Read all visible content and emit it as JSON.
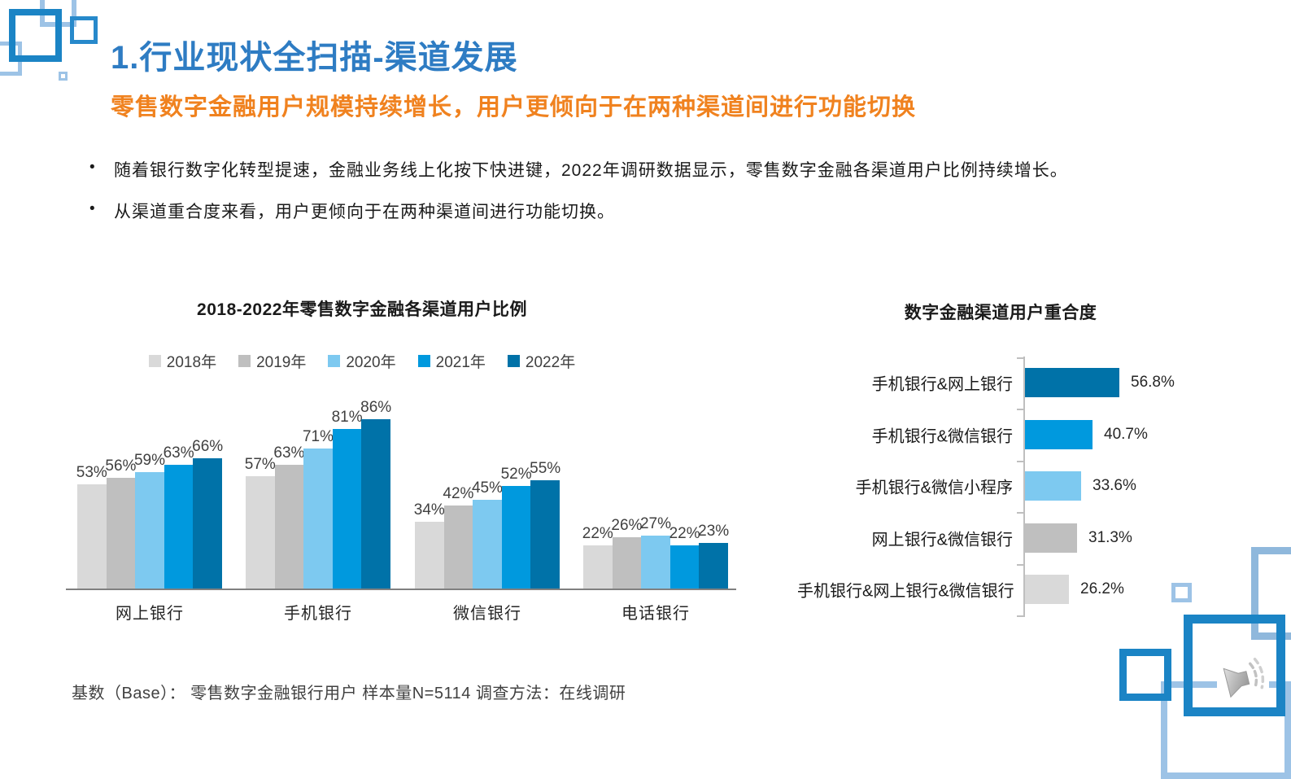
{
  "slide": {
    "title": "1.行业现状全扫描-渠道发展",
    "subtitle": "零售数字金融用户规模持续增长，用户更倾向于在两种渠道间进行功能切换",
    "bullet_char": "•",
    "bullets": [
      "随着银行数字化转型提速，金融业务线上化按下快进键，2022年调研数据显示，零售数字金融各渠道用户比例持续增长。",
      "从渠道重合度来看，用户更倾向于在两种渠道间进行功能切换。"
    ],
    "footer": "基数（Base）： 零售数字金融银行用户  样本量N=5114  调查方法：在线调研"
  },
  "colors": {
    "title_blue": "#2e7cc3",
    "accent_orange": "#f0821f",
    "decor_dark_blue": "#1b84c5",
    "decor_light_blue": "#9dc3e6",
    "axis_gray_left": "#808080",
    "axis_gray_right": "#bfbfbf"
  },
  "icons": {
    "audio_speaker": "speaker-with-sound-waves"
  },
  "chart_data": [
    {
      "type": "bar",
      "title": "2018-2022年零售数字金融各渠道用户比例",
      "categories": [
        "网上银行",
        "手机银行",
        "微信银行",
        "电话银行"
      ],
      "series": [
        {
          "name": "2018年",
          "color": "#d9d9d9",
          "values": [
            53,
            57,
            34,
            22
          ]
        },
        {
          "name": "2019年",
          "color": "#bfbfbf",
          "values": [
            56,
            63,
            42,
            26
          ]
        },
        {
          "name": "2020年",
          "color": "#7dc9f0",
          "values": [
            59,
            71,
            45,
            27
          ]
        },
        {
          "name": "2021年",
          "color": "#0099de",
          "values": [
            63,
            81,
            52,
            22
          ]
        },
        {
          "name": "2022年",
          "color": "#0072a8",
          "values": [
            66,
            86,
            55,
            23
          ]
        }
      ],
      "value_suffix": "%",
      "ylim": [
        0,
        100
      ],
      "grid": false,
      "legend_position": "top"
    },
    {
      "type": "bar",
      "orientation": "horizontal",
      "title": "数字金融渠道用户重合度",
      "categories": [
        "手机银行&网上银行",
        "手机银行&微信银行",
        "手机银行&微信小程序",
        "网上银行&微信银行",
        "手机银行&网上银行&微信银行"
      ],
      "values": [
        56.8,
        40.7,
        33.6,
        31.3,
        26.2
      ],
      "value_labels": [
        "56.8%",
        "40.7%",
        "33.6%",
        "31.3%",
        "26.2%"
      ],
      "bar_colors": [
        "#0072a8",
        "#0099de",
        "#7dc9f0",
        "#bfbfbf",
        "#d9d9d9"
      ],
      "xlim": [
        0,
        60
      ],
      "grid": false,
      "legend_position": "none"
    }
  ]
}
